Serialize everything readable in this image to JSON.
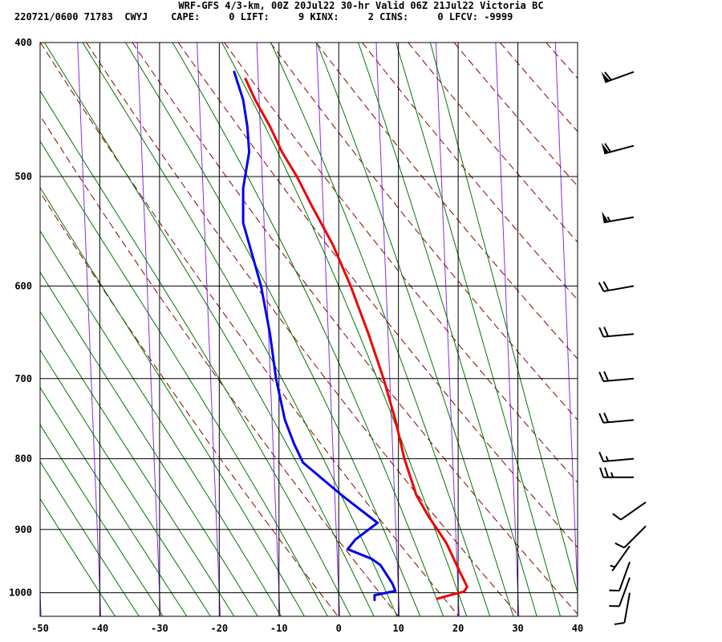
{
  "header": {
    "line1": "WRF-GFS 4/3-km, 00Z 20Jul22 30-hr Valid 06Z 21Jul22 Victoria BC",
    "line2": "220721/0600 71783  CWYJ    CAPE:     0 LIFT:     9 KINX:     2 CINS:     0 LFCV: -9999"
  },
  "chart_data": {
    "type": "skew-t",
    "title": "WRF-GFS 4/3-km, 00Z 20Jul22 30-hr Valid 06Z 21Jul22 Victoria BC",
    "xlabel": "",
    "ylabel": "",
    "xlim": [
      -50,
      40
    ],
    "pressure_range": [
      400,
      1040
    ],
    "pressure_scale": "log",
    "x_ticks": [
      "-50",
      "-40",
      "-30",
      "-20",
      "-10",
      "0",
      "10",
      "20",
      "30",
      "40"
    ],
    "pressure_ticks": [
      "400",
      "500",
      "600",
      "700",
      "800",
      "900",
      "1000"
    ],
    "grid": true,
    "colors": {
      "temperature": "#ee0000",
      "dewpoint": "#0000ee",
      "isotherm_skewed": "#8a2be2",
      "dry_adiabat": "#8b0000",
      "moist_adiabat": "#007700",
      "grid": "#000000",
      "wind_barb": "#000000"
    },
    "series": [
      {
        "key": "temperature",
        "points": [
          [
            16.5,
            1010
          ],
          [
            19.0,
            1003
          ],
          [
            21.0,
            998
          ],
          [
            21.5,
            990
          ],
          [
            20.0,
            960
          ],
          [
            18.0,
            920
          ],
          [
            15.0,
            880
          ],
          [
            13.0,
            850
          ],
          [
            11.0,
            800
          ],
          [
            9.5,
            750
          ],
          [
            7.5,
            700
          ],
          [
            5.0,
            650
          ],
          [
            2.0,
            600
          ],
          [
            -1.0,
            560
          ],
          [
            -4.5,
            525
          ],
          [
            -7.0,
            500
          ],
          [
            -9.5,
            480
          ],
          [
            -11.5,
            460
          ],
          [
            -14.0,
            440
          ],
          [
            -15.6,
            425
          ]
        ]
      },
      {
        "key": "dewpoint",
        "points": [
          [
            6.0,
            1012
          ],
          [
            6.0,
            1004
          ],
          [
            9.5,
            997
          ],
          [
            9.0,
            985
          ],
          [
            7.0,
            955
          ],
          [
            5.5,
            945
          ],
          [
            1.5,
            930
          ],
          [
            2.8,
            915
          ],
          [
            6.5,
            890
          ],
          [
            3.5,
            870
          ],
          [
            0.5,
            850
          ],
          [
            -6.0,
            805
          ],
          [
            -7.5,
            780
          ],
          [
            -9.0,
            750
          ],
          [
            -10.5,
            700
          ],
          [
            -11.5,
            650
          ],
          [
            -13.0,
            600
          ],
          [
            -16.0,
            540
          ],
          [
            -16.0,
            510
          ],
          [
            -15.0,
            480
          ],
          [
            -15.3,
            460
          ],
          [
            -16.0,
            440
          ],
          [
            -17.5,
            420
          ]
        ]
      }
    ],
    "winds": [
      {
        "p": 420,
        "dir": 250,
        "spd": 60
      },
      {
        "p": 475,
        "dir": 255,
        "spd": 60
      },
      {
        "p": 535,
        "dir": 260,
        "spd": 55
      },
      {
        "p": 600,
        "dir": 260,
        "spd": 20
      },
      {
        "p": 650,
        "dir": 265,
        "spd": 20
      },
      {
        "p": 700,
        "dir": 265,
        "spd": 20
      },
      {
        "p": 750,
        "dir": 265,
        "spd": 20
      },
      {
        "p": 800,
        "dir": 265,
        "spd": 15
      },
      {
        "p": 825,
        "dir": 270,
        "spd": 25
      },
      {
        "p": 860,
        "dir": 235,
        "spd": 10
      },
      {
        "p": 895,
        "dir": 225,
        "spd": 10
      },
      {
        "p": 925,
        "dir": 215,
        "spd": 5
      },
      {
        "p": 950,
        "dir": 200,
        "spd": 10
      },
      {
        "p": 975,
        "dir": 200,
        "spd": 10
      },
      {
        "p": 1000,
        "dir": 190,
        "spd": 10
      }
    ]
  }
}
